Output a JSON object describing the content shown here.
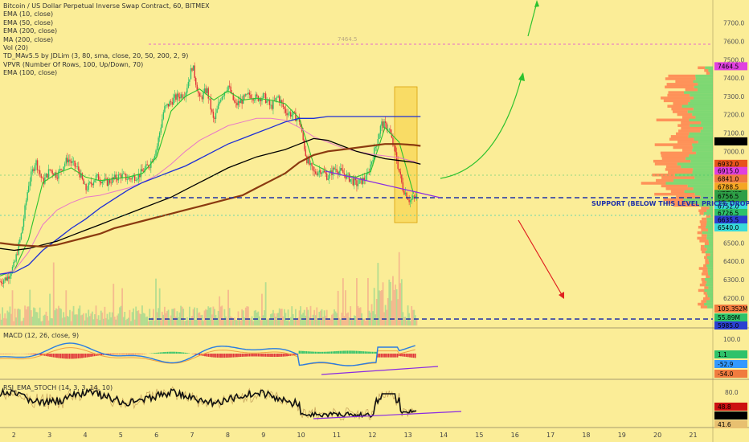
{
  "legend": [
    "Bitcoin / US Dollar Perpetual Inverse Swap Contract, 60, BITMEX",
    "EMA (10, close)",
    "EMA (50, close)",
    "EMA (200, close)",
    "MA (200, close)",
    "Vol (20)",
    "TD_MAv5.5 by JDLim (3, 80, sma, close, 20, 50, 200, 2, 9)",
    "VPVR (Number Of Rows, 100, Up/Down, 70)",
    "EMA (100, close)"
  ],
  "macd_label": "MACD (12, 26, close, 9)",
  "rsi_label": "RSI_EMA_STOCH (14, 3, 3, 14, 10)",
  "support_label": "SUPPORT (BELOW THIS LEVEL PRICES DROP)",
  "top_level_label": "7464.5",
  "price_axis": {
    "ticks": [
      "7700.0",
      "7600.0",
      "7500.0",
      "7400.0",
      "7300.0",
      "7200.0",
      "7100.0",
      "7000.0",
      "6900.0",
      "6800.0",
      "6700.0",
      "6600.0",
      "6500.0",
      "6400.0",
      "6300.0",
      "6200.0",
      "6100.0"
    ],
    "badges": [
      {
        "text": "7464.5",
        "color": "#e040e0",
        "value": 7464.5
      },
      {
        "text": "7054.5",
        "color": "#000000",
        "value": 7054.5,
        "light": true
      },
      {
        "text": "6932.0",
        "color": "#e8541b",
        "value": 6932.0
      },
      {
        "text": "6915.0",
        "color": "#e040e0",
        "value": 6893.0
      },
      {
        "text": "6841.0",
        "color": "#f07b3f",
        "value": 6851.0
      },
      {
        "text": "6788.5",
        "color": "#f5a623",
        "value": 6806.0
      },
      {
        "text": "XBTUSD",
        "color": "#2e9f46",
        "value": 6768.0,
        "light": true
      },
      {
        "text": "6756.5",
        "color": "#2e9f46",
        "value": 6756.5,
        "light": true
      },
      {
        "text": "15:22",
        "color": "#2e9f46",
        "value": 6719.0,
        "light": true
      },
      {
        "text": "6752.0",
        "color": "#38d9d9",
        "value": 6701.0
      },
      {
        "text": "6726.5",
        "color": "#2ec26a",
        "value": 6664.0
      },
      {
        "text": "6635.5",
        "color": "#2b3fd1",
        "value": 6627.0,
        "light": true
      },
      {
        "text": "6540.0",
        "color": "#38d9d9",
        "value": 6585.0
      }
    ]
  },
  "volume_axis": {
    "badges": [
      {
        "text": "105.352M",
        "color": "#f07b3f"
      },
      {
        "text": "55.89M",
        "color": "#2ec26a"
      },
      {
        "text": "5985.0",
        "color": "#2b3fd1",
        "light": true
      }
    ]
  },
  "macd_axis": {
    "ticks": [
      "100.0"
    ],
    "badges": [
      {
        "text": "1.1",
        "color": "#2ec26a"
      },
      {
        "text": "-52.9",
        "color": "#3399ff",
        "light": true
      },
      {
        "text": "-54.0",
        "color": "#f07b3f"
      }
    ]
  },
  "rsi_axis": {
    "ticks": [
      "80.0"
    ],
    "badges": [
      {
        "text": "48.8",
        "color": "#cc1111",
        "light": true
      },
      {
        "text": "47.2",
        "color": "#000000",
        "light": true
      },
      {
        "text": "41.6",
        "color": "#e8c070"
      }
    ]
  },
  "chart_data": {
    "type": "line",
    "title": "Bitcoin / US Dollar Perpetual Inverse Swap Contract, 60, BITMEX",
    "x_ticks": [
      "2",
      "3",
      "4",
      "5",
      "6",
      "7",
      "8",
      "9",
      "10",
      "11",
      "12",
      "13",
      "14",
      "15",
      "16",
      "17",
      "18",
      "19",
      "20",
      "21"
    ],
    "xlim": [
      1.6,
      21.6
    ],
    "ylim": [
      6050,
      7760
    ],
    "series": [
      {
        "name": "Price",
        "x": [
          1.6,
          1.8,
          2.0,
          2.2,
          2.4,
          2.6,
          2.8,
          3.0,
          3.2,
          3.5,
          3.8,
          4.0,
          4.3,
          4.6,
          5.0,
          5.2,
          5.5,
          5.8,
          6.0,
          6.2,
          6.5,
          6.8,
          7.0,
          7.2,
          7.4,
          7.6,
          7.8,
          8.0,
          8.2,
          8.4,
          8.6,
          8.8,
          9.0,
          9.2,
          9.4,
          9.6,
          9.8,
          10.0,
          10.2,
          10.4,
          10.6,
          10.8,
          11.0,
          11.3,
          11.6,
          11.9,
          12.1,
          12.3,
          12.5,
          12.7,
          12.9,
          13.1,
          13.3
        ],
        "values": [
          6290,
          6310,
          6380,
          6550,
          6820,
          6950,
          6830,
          6900,
          6870,
          6960,
          6900,
          6790,
          6860,
          6830,
          6870,
          6850,
          6870,
          6930,
          7020,
          7230,
          7290,
          7320,
          7470,
          7280,
          7340,
          7160,
          7300,
          7360,
          7250,
          7280,
          7310,
          7290,
          7300,
          7240,
          7300,
          7220,
          7200,
          7170,
          6960,
          6880,
          6900,
          6860,
          6910,
          6870,
          6820,
          6860,
          7000,
          7150,
          7130,
          6980,
          6800,
          6730,
          6760
        ]
      },
      {
        "name": "EMA (10, close)",
        "x": [
          1.6,
          2.0,
          2.4,
          2.8,
          3.2,
          3.6,
          4.0,
          4.4,
          4.8,
          5.2,
          5.6,
          6.0,
          6.4,
          6.8,
          7.2,
          7.6,
          8.0,
          8.4,
          8.8,
          9.2,
          9.6,
          10.0,
          10.4,
          10.8,
          11.2,
          11.6,
          12.0,
          12.4,
          12.8,
          13.2
        ],
        "values": [
          6320,
          6350,
          6520,
          6830,
          6880,
          6910,
          6860,
          6840,
          6850,
          6860,
          6880,
          6970,
          7220,
          7300,
          7340,
          7280,
          7330,
          7280,
          7290,
          7280,
          7260,
          7180,
          6930,
          6890,
          6870,
          6860,
          6890,
          7130,
          7050,
          6770
        ]
      },
      {
        "name": "EMA (50, close)",
        "x": [
          1.6,
          2.0,
          2.4,
          2.8,
          3.2,
          3.6,
          4.0,
          4.4,
          4.8,
          5.2,
          5.6,
          6.0,
          6.4,
          6.8,
          7.2,
          7.6,
          8.0,
          8.4,
          8.8,
          9.2,
          9.6,
          10.0,
          10.4,
          10.8,
          11.2,
          11.6,
          12.0,
          12.4,
          12.8,
          13.2,
          13.4
        ],
        "values": [
          6330,
          6350,
          6450,
          6600,
          6680,
          6720,
          6750,
          6760,
          6780,
          6800,
          6830,
          6870,
          6930,
          7000,
          7060,
          7100,
          7140,
          7160,
          7180,
          7180,
          7170,
          7130,
          7080,
          7050,
          7020,
          7000,
          6985,
          6975,
          6965,
          6945,
          6930
        ]
      },
      {
        "name": "EMA (100, close)",
        "x": [
          1.6,
          2.0,
          2.4,
          2.8,
          3.2,
          3.6,
          4.0,
          4.4,
          4.8,
          5.2,
          5.6,
          6.0,
          6.4,
          6.8,
          7.2,
          7.6,
          8.0,
          8.4,
          8.8,
          9.2,
          9.6,
          10.0,
          10.4,
          10.8,
          11.2,
          11.6,
          12.0,
          12.4,
          12.8,
          13.2,
          13.4
        ],
        "values": [
          6330,
          6340,
          6380,
          6460,
          6520,
          6580,
          6630,
          6690,
          6740,
          6790,
          6830,
          6860,
          6890,
          6920,
          6960,
          7000,
          7040,
          7070,
          7100,
          7130,
          7160,
          7180,
          7180,
          7190,
          7190,
          7190,
          7190,
          7190,
          7190,
          7190,
          7190
        ]
      },
      {
        "name": "EMA (200, close)",
        "x": [
          1.6,
          2.0,
          2.4,
          2.8,
          3.2,
          3.6,
          4.0,
          4.4,
          4.8,
          5.2,
          5.6,
          6.0,
          6.4,
          6.8,
          7.2,
          7.6,
          8.0,
          8.4,
          8.8,
          9.2,
          9.6,
          10.0,
          10.4,
          10.8,
          11.2,
          11.6,
          12.0,
          12.4,
          12.8,
          13.2,
          13.4
        ],
        "values": [
          6470,
          6460,
          6470,
          6490,
          6510,
          6540,
          6570,
          6600,
          6630,
          6660,
          6690,
          6720,
          6750,
          6790,
          6830,
          6870,
          6910,
          6940,
          6970,
          6990,
          7010,
          7040,
          7070,
          7060,
          7030,
          7000,
          6980,
          6960,
          6950,
          6940,
          6930
        ]
      },
      {
        "name": "MA (200, close)",
        "x": [
          1.6,
          2.0,
          2.4,
          2.8,
          3.2,
          3.6,
          4.0,
          4.4,
          4.8,
          5.2,
          5.6,
          6.0,
          6.4,
          6.8,
          7.2,
          7.6,
          8.0,
          8.4,
          8.8,
          9.2,
          9.6,
          10.0,
          10.4,
          10.8,
          11.2,
          11.6,
          12.0,
          12.4,
          12.8,
          13.2,
          13.4
        ],
        "values": [
          6500,
          6490,
          6485,
          6480,
          6490,
          6510,
          6530,
          6550,
          6580,
          6600,
          6620,
          6640,
          6660,
          6680,
          6700,
          6720,
          6740,
          6760,
          6800,
          6840,
          6880,
          6940,
          6980,
          7000,
          7010,
          7020,
          7030,
          7040,
          7040,
          7035,
          7030
        ]
      }
    ],
    "support_level": 6680,
    "top_level": 7464.5,
    "secondary_dashed_level": 6605
  }
}
